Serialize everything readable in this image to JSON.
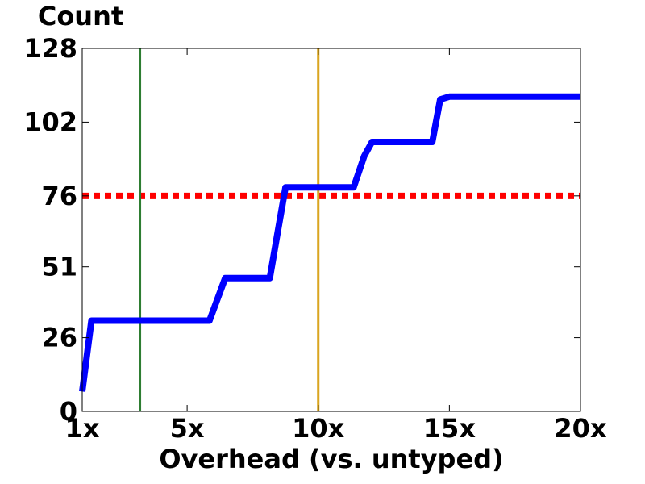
{
  "chart_data": {
    "type": "line",
    "title": "",
    "ylabel": "Count",
    "xlabel": "Overhead  (vs. untyped)",
    "xlim": [
      1,
      20
    ],
    "ylim": [
      0,
      128
    ],
    "x_ticks": [
      {
        "value": 1,
        "label": "1x"
      },
      {
        "value": 5,
        "label": "5x"
      },
      {
        "value": 10,
        "label": "10x"
      },
      {
        "value": 15,
        "label": "15x"
      },
      {
        "value": 20,
        "label": "20x"
      }
    ],
    "y_ticks": [
      {
        "value": 0,
        "label": "0"
      },
      {
        "value": 26,
        "label": "26"
      },
      {
        "value": 51,
        "label": "51"
      },
      {
        "value": 76,
        "label": "76"
      },
      {
        "value": 102,
        "label": "102"
      },
      {
        "value": 128,
        "label": "128"
      }
    ],
    "series": [
      {
        "color": "#0000ff",
        "points": [
          [
            1.0,
            7
          ],
          [
            1.35,
            32
          ],
          [
            5.85,
            32
          ],
          [
            6.45,
            47
          ],
          [
            8.15,
            47
          ],
          [
            8.45,
            63
          ],
          [
            8.75,
            79
          ],
          [
            11.35,
            79
          ],
          [
            11.75,
            90
          ],
          [
            12.05,
            95
          ],
          [
            14.35,
            95
          ],
          [
            14.65,
            110
          ],
          [
            15.0,
            111
          ],
          [
            20.0,
            111
          ]
        ]
      }
    ],
    "reference_lines": [
      {
        "orientation": "horizontal",
        "value": 76,
        "color": "#ff0000",
        "style": "dotted"
      },
      {
        "orientation": "vertical",
        "value": 3.2,
        "color": "#2e7d32",
        "style": "solid"
      },
      {
        "orientation": "vertical",
        "value": 10,
        "color": "#daa520",
        "style": "solid"
      }
    ],
    "grid": false,
    "legend": false
  }
}
